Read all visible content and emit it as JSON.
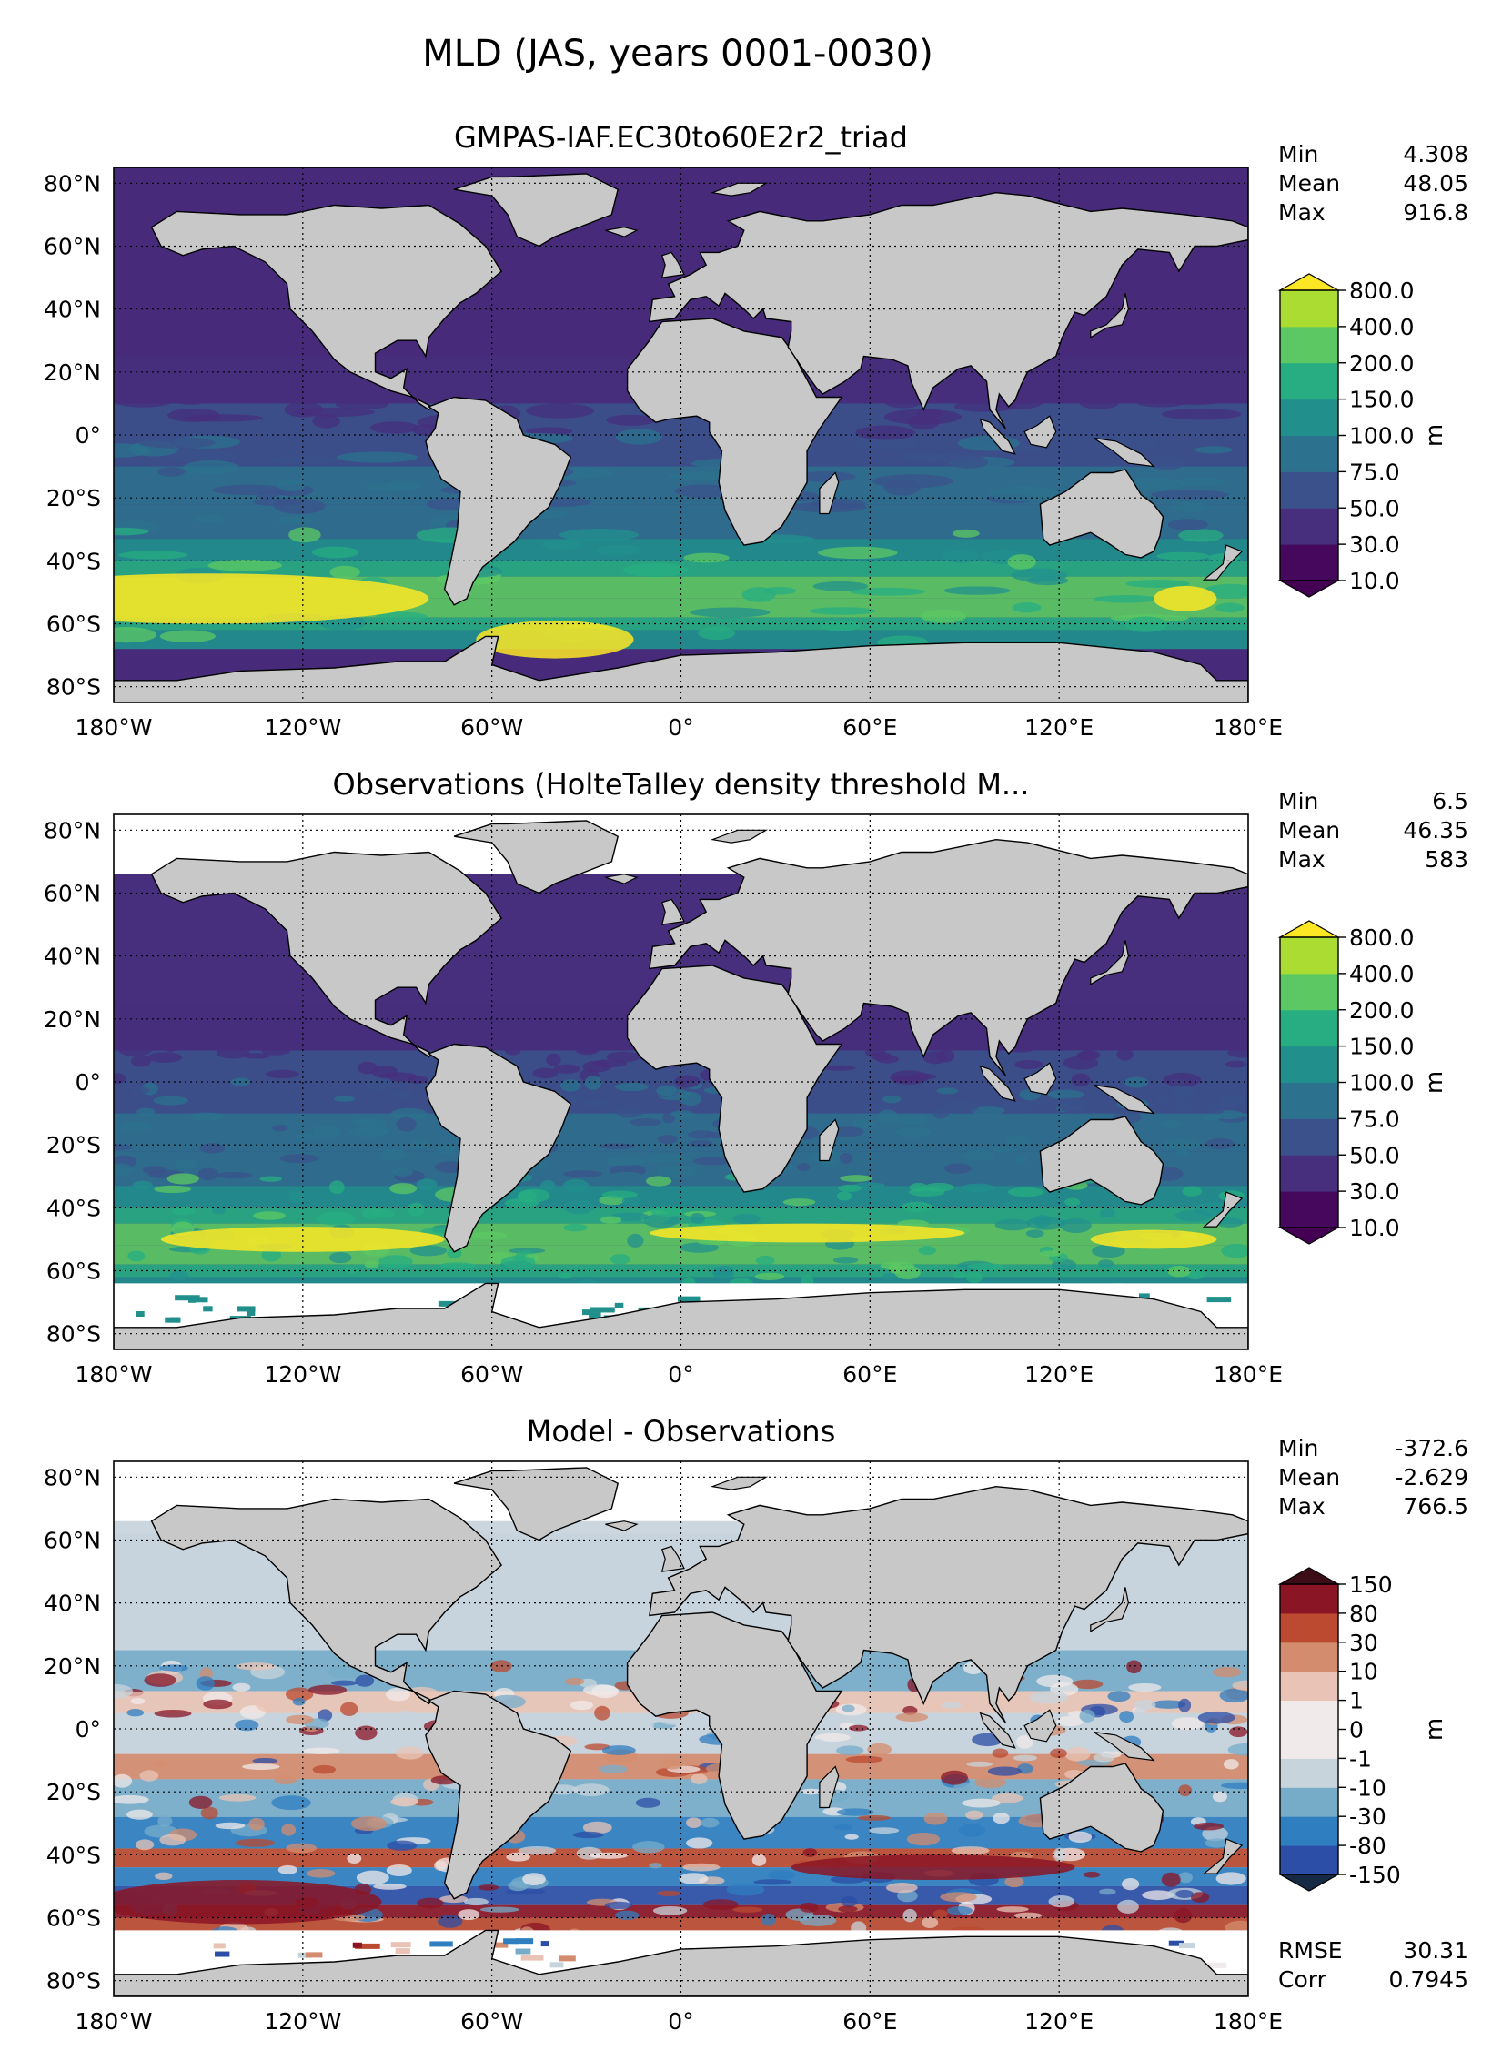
{
  "suptitle": "MLD (JAS, years 0001-0030)",
  "lon_ticks": [
    "180°W",
    "120°W",
    "60°W",
    "0°",
    "60°E",
    "120°E",
    "180°E"
  ],
  "lat_ticks": [
    "80°N",
    "60°N",
    "40°N",
    "20°N",
    "0°",
    "20°S",
    "40°S",
    "60°S",
    "80°S"
  ],
  "panels": [
    {
      "title": "GMPAS-IAF.EC30to60E2r2_triad",
      "stats": [
        {
          "label": "Min",
          "value": "4.308"
        },
        {
          "label": "Mean",
          "value": "48.05"
        },
        {
          "label": "Max",
          "value": "916.8"
        }
      ],
      "colorbar": {
        "unit": "m",
        "levels": [
          "10.0",
          "30.0",
          "50.0",
          "75.0",
          "100.0",
          "150.0",
          "200.0",
          "400.0",
          "800.0"
        ],
        "colors": [
          "#46085c",
          "#472f7d",
          "#3b518b",
          "#2c718e",
          "#21908d",
          "#27ad81",
          "#5cc863",
          "#aadc32"
        ],
        "under_color": "#440154",
        "over_color": "#fde725"
      },
      "bottom_stats": []
    },
    {
      "title": "Observations (HolteTalley density threshold M...",
      "stats": [
        {
          "label": "Min",
          "value": "6.5"
        },
        {
          "label": "Mean",
          "value": "46.35"
        },
        {
          "label": "Max",
          "value": "583"
        }
      ],
      "colorbar": {
        "unit": "m",
        "levels": [
          "10.0",
          "30.0",
          "50.0",
          "75.0",
          "100.0",
          "150.0",
          "200.0",
          "400.0",
          "800.0"
        ],
        "colors": [
          "#46085c",
          "#472f7d",
          "#3b518b",
          "#2c718e",
          "#21908d",
          "#27ad81",
          "#5cc863",
          "#aadc32"
        ],
        "under_color": "#440154",
        "over_color": "#fde725"
      },
      "bottom_stats": []
    },
    {
      "title": "Model - Observations",
      "stats": [
        {
          "label": "Min",
          "value": "-372.6"
        },
        {
          "label": "Mean",
          "value": "-2.629"
        },
        {
          "label": "Max",
          "value": "766.5"
        }
      ],
      "colorbar": {
        "unit": "m",
        "levels": [
          "-150",
          "-80",
          "-30",
          "-10",
          "-1",
          "0",
          "1",
          "10",
          "30",
          "80",
          "150"
        ],
        "colors": [
          "#2c4ea6",
          "#2f7ec0",
          "#77acc9",
          "#c8d4dc",
          "#f0eaea",
          "#f0eaea",
          "#e9c4b6",
          "#d48c6e",
          "#bb4a30",
          "#8a1525"
        ],
        "under_color": "#172a45",
        "over_color": "#3c0d17"
      },
      "bottom_stats": [
        {
          "label": "RMSE",
          "value": "30.31"
        },
        {
          "label": "Corr",
          "value": "0.7945"
        }
      ]
    }
  ],
  "map_colors": {
    "land": "#c8c8c8",
    "missing": "#ffffff",
    "model_ocean": "#472b7a",
    "obs_ocean": "#472f7d",
    "diff_ocean": "#cbd6de"
  }
}
